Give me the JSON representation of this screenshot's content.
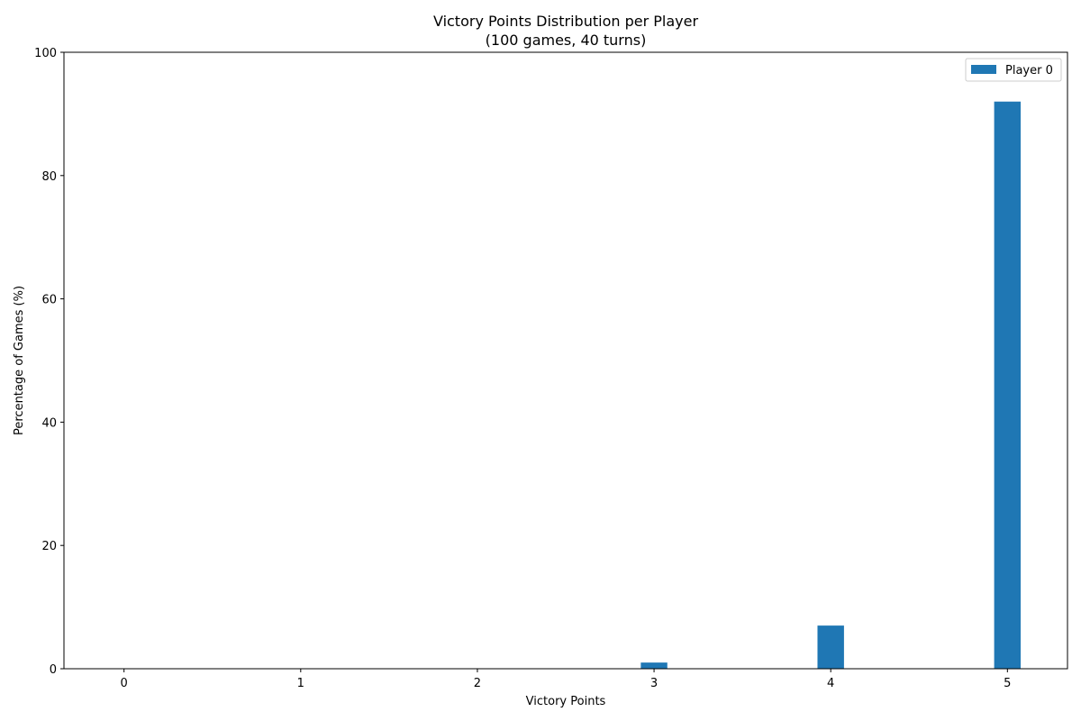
{
  "chart_data": {
    "type": "bar",
    "title": "Victory Points Distribution per Player",
    "subtitle": "(100 games, 40 turns)",
    "xlabel": "Victory Points",
    "ylabel": "Percentage of Games (%)",
    "categories": [
      "0",
      "1",
      "2",
      "3",
      "4",
      "5"
    ],
    "x": [
      0,
      1,
      2,
      3,
      4,
      5
    ],
    "series": [
      {
        "name": "Player 0",
        "color": "#1f77b4",
        "values": [
          0,
          0,
          0,
          1,
          7,
          92
        ]
      }
    ],
    "xlim": [
      -0.34,
      5.34
    ],
    "ylim": [
      0,
      100
    ],
    "yticks": [
      0,
      20,
      40,
      60,
      80,
      100
    ],
    "grid": false,
    "legend": "top-right"
  }
}
